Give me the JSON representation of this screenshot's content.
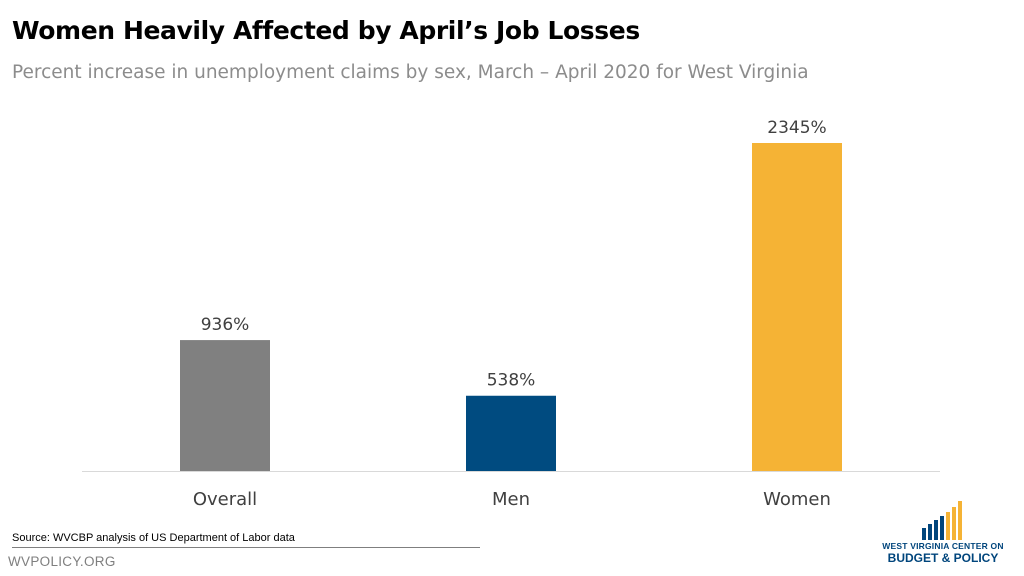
{
  "header": {
    "title": "Women Heavily Affected by April’s Job Losses",
    "subtitle": "Percent increase in unemployment claims by sex, March – April 2020 for West Virginia"
  },
  "chart_data": {
    "type": "bar",
    "categories": [
      "Overall",
      "Men",
      "Women"
    ],
    "values": [
      936,
      538,
      2345
    ],
    "value_labels": [
      "936%",
      "538%",
      "2345%"
    ],
    "colors": [
      "#808080",
      "#004b80",
      "#f5b335"
    ],
    "ylim": [
      0,
      2500
    ],
    "grid": false,
    "legend": "none"
  },
  "footer": {
    "source": "Source: WVCBP analysis of US Department of Labor data",
    "site": "WVPOLICY.ORG",
    "logo_line1": "WEST VIRGINIA CENTER ON",
    "logo_line2": "BUDGET & POLICY"
  }
}
